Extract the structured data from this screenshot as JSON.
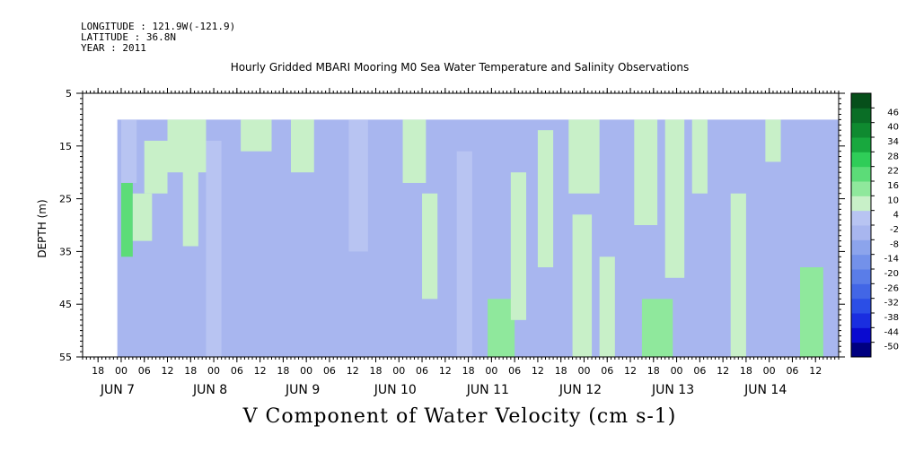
{
  "header": {
    "longitude": "LONGITUDE : 121.9W(-121.9)",
    "latitude": "LATITUDE : 36.8N",
    "year": "YEAR : 2011"
  },
  "chart_data": {
    "type": "heatmap",
    "title": "Hourly Gridded MBARI Mooring M0 Sea Water Temperature and Salinity Observations",
    "xlabel": "V Component of Water Velocity (cm s-1)",
    "ylabel": "DEPTH (m)",
    "ylim": [
      5,
      55
    ],
    "y_inverted": true,
    "data_depth_range": [
      10,
      55
    ],
    "yticks": [
      5,
      15,
      25,
      35,
      45,
      55
    ],
    "x_start": "2011-06-06T14:00",
    "x_end": "2011-06-14T18:00",
    "data_x_start": "2011-06-06T23:00",
    "hour_ticks": [
      {
        "h": 18,
        "label": "18"
      },
      {
        "h": 24,
        "label": "00"
      },
      {
        "h": 30,
        "label": "06"
      },
      {
        "h": 36,
        "label": "12"
      },
      {
        "h": 42,
        "label": "18"
      },
      {
        "h": 48,
        "label": "00"
      },
      {
        "h": 54,
        "label": "06"
      },
      {
        "h": 60,
        "label": "12"
      },
      {
        "h": 66,
        "label": "18"
      },
      {
        "h": 72,
        "label": "00"
      },
      {
        "h": 78,
        "label": "06"
      },
      {
        "h": 84,
        "label": "12"
      },
      {
        "h": 90,
        "label": "18"
      },
      {
        "h": 96,
        "label": "00"
      },
      {
        "h": 102,
        "label": "06"
      },
      {
        "h": 108,
        "label": "12"
      },
      {
        "h": 114,
        "label": "18"
      },
      {
        "h": 120,
        "label": "00"
      },
      {
        "h": 126,
        "label": "06"
      },
      {
        "h": 132,
        "label": "12"
      },
      {
        "h": 138,
        "label": "18"
      },
      {
        "h": 144,
        "label": "00"
      },
      {
        "h": 150,
        "label": "06"
      },
      {
        "h": 156,
        "label": "12"
      },
      {
        "h": 162,
        "label": "18"
      },
      {
        "h": 168,
        "label": "00"
      },
      {
        "h": 174,
        "label": "06"
      },
      {
        "h": 180,
        "label": "12"
      },
      {
        "h": 186,
        "label": "18"
      },
      {
        "h": 192,
        "label": "00"
      },
      {
        "h": 198,
        "label": "06"
      },
      {
        "h": 204,
        "label": "12"
      }
    ],
    "day_labels": [
      {
        "h": 24,
        "label": "JUN  7"
      },
      {
        "h": 48,
        "label": "JUN  8"
      },
      {
        "h": 72,
        "label": "JUN  9"
      },
      {
        "h": 96,
        "label": "JUN 10"
      },
      {
        "h": 120,
        "label": "JUN 11"
      },
      {
        "h": 144,
        "label": "JUN 12"
      },
      {
        "h": 168,
        "label": "JUN 13"
      },
      {
        "h": 192,
        "label": "JUN 14"
      }
    ],
    "colorbar": {
      "levels": [
        -50,
        -44,
        -38,
        -32,
        -26,
        -20,
        -14,
        -8,
        -2,
        4,
        10,
        16,
        22,
        28,
        34,
        40,
        46
      ],
      "labels": [
        "-50",
        "-44",
        "-38",
        "-32",
        "-26",
        "-20",
        "-14",
        "-8",
        "-2",
        "4",
        "10",
        "16",
        "22",
        "28",
        "34",
        "40",
        "46"
      ],
      "colors": [
        "#000080",
        "#0a0ad0",
        "#1a2ee0",
        "#2b4ee6",
        "#4266e6",
        "#5a7de8",
        "#7391ea",
        "#8ca4ec",
        "#a8b6ef",
        "#b8c4f2",
        "#c8f0c8",
        "#8fe89c",
        "#5cdc78",
        "#2fcd58",
        "#18a83e",
        "#0f8a30",
        "#0a6e26",
        "#064f1a"
      ]
    },
    "bands": [
      {
        "t0": 24,
        "t1": 28,
        "d0": 10,
        "d1": 22,
        "v": 2
      },
      {
        "t0": 24,
        "t1": 27,
        "d0": 22,
        "d1": 36,
        "v": 16
      },
      {
        "t0": 27,
        "t1": 32,
        "d0": 24,
        "d1": 33,
        "v": 6
      },
      {
        "t0": 30,
        "t1": 36,
        "d0": 14,
        "d1": 24,
        "v": 8
      },
      {
        "t0": 36,
        "t1": 46,
        "d0": 10,
        "d1": 20,
        "v": 8
      },
      {
        "t0": 40,
        "t1": 44,
        "d0": 18,
        "d1": 34,
        "v": 4
      },
      {
        "t0": 46,
        "t1": 50,
        "d0": 14,
        "d1": 55,
        "v": 3
      },
      {
        "t0": 55,
        "t1": 63,
        "d0": 10,
        "d1": 16,
        "v": 6
      },
      {
        "t0": 68,
        "t1": 74,
        "d0": 10,
        "d1": 20,
        "v": 5
      },
      {
        "t0": 83,
        "t1": 88,
        "d0": 10,
        "d1": 35,
        "v": 3
      },
      {
        "t0": 97,
        "t1": 103,
        "d0": 10,
        "d1": 22,
        "v": 7
      },
      {
        "t0": 102,
        "t1": 106,
        "d0": 24,
        "d1": 44,
        "v": 4
      },
      {
        "t0": 111,
        "t1": 115,
        "d0": 16,
        "d1": 55,
        "v": 3
      },
      {
        "t0": 119,
        "t1": 126,
        "d0": 44,
        "d1": 55,
        "v": 10
      },
      {
        "t0": 125,
        "t1": 129,
        "d0": 20,
        "d1": 48,
        "v": 4
      },
      {
        "t0": 132,
        "t1": 136,
        "d0": 12,
        "d1": 38,
        "v": 4
      },
      {
        "t0": 140,
        "t1": 148,
        "d0": 10,
        "d1": 24,
        "v": 8
      },
      {
        "t0": 141,
        "t1": 146,
        "d0": 28,
        "d1": 55,
        "v": 6
      },
      {
        "t0": 148,
        "t1": 152,
        "d0": 36,
        "d1": 55,
        "v": 4
      },
      {
        "t0": 157,
        "t1": 163,
        "d0": 10,
        "d1": 30,
        "v": 8
      },
      {
        "t0": 159,
        "t1": 167,
        "d0": 44,
        "d1": 55,
        "v": 14
      },
      {
        "t0": 165,
        "t1": 170,
        "d0": 10,
        "d1": 40,
        "v": 4
      },
      {
        "t0": 172,
        "t1": 176,
        "d0": 10,
        "d1": 24,
        "v": 4
      },
      {
        "t0": 182,
        "t1": 186,
        "d0": 24,
        "d1": 55,
        "v": 5
      },
      {
        "t0": 191,
        "t1": 195,
        "d0": 10,
        "d1": 18,
        "v": 6
      },
      {
        "t0": 200,
        "t1": 206,
        "d0": 38,
        "d1": 55,
        "v": 12
      }
    ]
  }
}
